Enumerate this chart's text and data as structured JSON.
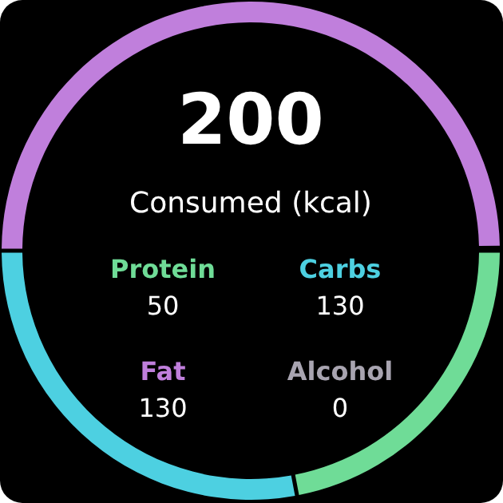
{
  "chart_data": [
    {
      "type": "donut",
      "categories": [
        null,
        null,
        null,
        null
      ],
      "values": [
        22,
        28,
        50,
        0
      ],
      "colors": [
        "#6fdc97",
        "#4dd0e1",
        "#c07fdc",
        "#a8a4b0"
      ]
    },
    {
      "type": "other",
      "title": "200",
      "subtitle": "Consumed (kcal)",
      "annotations": [
        "Protein",
        "50",
        "Carbs",
        "130",
        "Fat",
        "130",
        "Alcohol",
        "0"
      ]
    }
  ]
}
